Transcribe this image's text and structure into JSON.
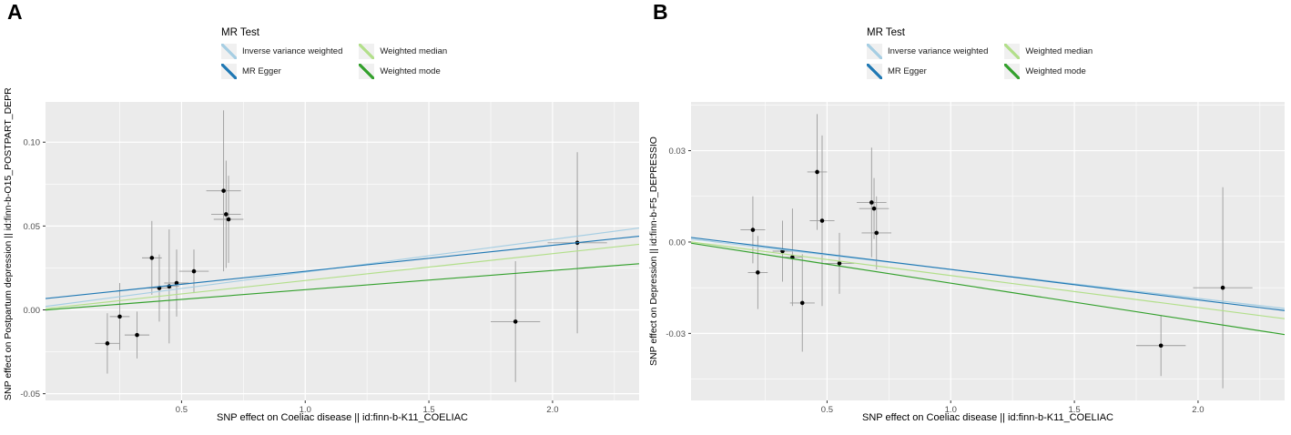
{
  "panels": [
    {
      "label": "A"
    },
    {
      "label": "B"
    }
  ],
  "chart_data": [
    {
      "type": "scatter",
      "title": "",
      "legend_title": "MR Test",
      "legend_position": "top",
      "xlabel": "SNP effect on Coeliac disease || id:finn-b-K11_COELIAC",
      "ylabel": "SNP effect on Postpartum depression || id:finn-b-O15_POSTPART_DEPR",
      "xlim": [
        -0.05,
        2.35
      ],
      "ylim": [
        -0.054,
        0.124
      ],
      "x_ticks": [
        0.5,
        1.0,
        1.5,
        2.0
      ],
      "x_tick_labels": [
        "0.5",
        "1.0",
        "1.5",
        "2.0"
      ],
      "y_ticks": [
        -0.05,
        0.0,
        0.05,
        0.1
      ],
      "y_tick_labels": [
        "-0.05",
        "0.00",
        "0.05",
        "0.10"
      ],
      "grid": true,
      "panel_bg": "#ebebeb",
      "point_color": "#000000",
      "errorbar_color": "#9b9b9b",
      "points": [
        {
          "x": 0.2,
          "y": -0.02,
          "xerr": 0.05,
          "yerr": 0.018
        },
        {
          "x": 0.25,
          "y": -0.004,
          "xerr": 0.04,
          "yerr": 0.02
        },
        {
          "x": 0.32,
          "y": -0.015,
          "xerr": 0.05,
          "yerr": 0.014
        },
        {
          "x": 0.38,
          "y": 0.031,
          "xerr": 0.04,
          "yerr": 0.022
        },
        {
          "x": 0.41,
          "y": 0.013,
          "xerr": 0.05,
          "yerr": 0.02
        },
        {
          "x": 0.45,
          "y": 0.014,
          "xerr": 0.04,
          "yerr": 0.034
        },
        {
          "x": 0.48,
          "y": 0.016,
          "xerr": 0.05,
          "yerr": 0.02
        },
        {
          "x": 0.55,
          "y": 0.023,
          "xerr": 0.06,
          "yerr": 0.013
        },
        {
          "x": 0.67,
          "y": 0.071,
          "xerr": 0.07,
          "yerr": 0.048
        },
        {
          "x": 0.68,
          "y": 0.057,
          "xerr": 0.06,
          "yerr": 0.032
        },
        {
          "x": 0.69,
          "y": 0.054,
          "xerr": 0.06,
          "yerr": 0.026
        },
        {
          "x": 1.85,
          "y": -0.007,
          "xerr": 0.1,
          "yerr": 0.036
        },
        {
          "x": 2.1,
          "y": 0.04,
          "xerr": 0.12,
          "yerr": 0.054
        }
      ],
      "lines": [
        {
          "name": "Inverse variance weighted",
          "color": "#a6cee3",
          "intercept": 0.003,
          "slope": 0.0195
        },
        {
          "name": "MR Egger",
          "color": "#1f78b4",
          "intercept": 0.0075,
          "slope": 0.0155
        },
        {
          "name": "Weighted median",
          "color": "#b2df8a",
          "intercept": 0.0015,
          "slope": 0.016
        },
        {
          "name": "Weighted mode",
          "color": "#33a02c",
          "intercept": 0.0005,
          "slope": 0.0115
        }
      ]
    },
    {
      "type": "scatter",
      "title": "",
      "legend_title": "MR Test",
      "legend_position": "top",
      "xlabel": "SNP effect on Coeliac disease || id:finn-b-K11_COELIAC",
      "ylabel": "SNP effect on Depression || id:finn-b-F5_DEPRESSIO",
      "xlim": [
        -0.05,
        2.35
      ],
      "ylim": [
        -0.052,
        0.046
      ],
      "x_ticks": [
        0.5,
        1.0,
        1.5,
        2.0
      ],
      "x_tick_labels": [
        "0.5",
        "1.0",
        "1.5",
        "2.0"
      ],
      "y_ticks": [
        -0.03,
        0.0,
        0.03
      ],
      "y_tick_labels": [
        "-0.03",
        "0.00",
        "0.03"
      ],
      "grid": true,
      "panel_bg": "#ebebeb",
      "point_color": "#000000",
      "errorbar_color": "#9b9b9b",
      "points": [
        {
          "x": 0.2,
          "y": 0.004,
          "xerr": 0.05,
          "yerr": 0.011
        },
        {
          "x": 0.22,
          "y": -0.01,
          "xerr": 0.04,
          "yerr": 0.012
        },
        {
          "x": 0.32,
          "y": -0.003,
          "xerr": 0.04,
          "yerr": 0.01
        },
        {
          "x": 0.36,
          "y": -0.005,
          "xerr": 0.04,
          "yerr": 0.016
        },
        {
          "x": 0.4,
          "y": -0.02,
          "xerr": 0.05,
          "yerr": 0.016
        },
        {
          "x": 0.46,
          "y": 0.023,
          "xerr": 0.04,
          "yerr": 0.019
        },
        {
          "x": 0.48,
          "y": 0.007,
          "xerr": 0.05,
          "yerr": 0.028
        },
        {
          "x": 0.55,
          "y": -0.007,
          "xerr": 0.06,
          "yerr": 0.01
        },
        {
          "x": 0.68,
          "y": 0.013,
          "xerr": 0.06,
          "yerr": 0.018
        },
        {
          "x": 0.69,
          "y": 0.011,
          "xerr": 0.06,
          "yerr": 0.01
        },
        {
          "x": 0.7,
          "y": 0.003,
          "xerr": 0.06,
          "yerr": 0.012
        },
        {
          "x": 1.85,
          "y": -0.034,
          "xerr": 0.1,
          "yerr": 0.01
        },
        {
          "x": 2.1,
          "y": -0.015,
          "xerr": 0.12,
          "yerr": 0.033
        }
      ],
      "lines": [
        {
          "name": "Inverse variance weighted",
          "color": "#a6cee3",
          "intercept": 0.0005,
          "slope": -0.0095
        },
        {
          "name": "MR Egger",
          "color": "#1f78b4",
          "intercept": 0.001,
          "slope": -0.01
        },
        {
          "name": "Weighted median",
          "color": "#b2df8a",
          "intercept": -0.0005,
          "slope": -0.0105
        },
        {
          "name": "Weighted mode",
          "color": "#33a02c",
          "intercept": -0.001,
          "slope": -0.0125
        }
      ]
    }
  ]
}
